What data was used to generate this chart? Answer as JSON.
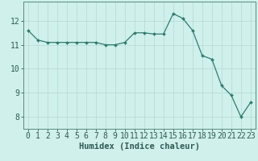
{
  "x": [
    0,
    1,
    2,
    3,
    4,
    5,
    6,
    7,
    8,
    9,
    10,
    11,
    12,
    13,
    14,
    15,
    16,
    17,
    18,
    19,
    20,
    21,
    22,
    23
  ],
  "y": [
    11.6,
    11.2,
    11.1,
    11.1,
    11.1,
    11.1,
    11.1,
    11.1,
    11.0,
    11.0,
    11.1,
    11.5,
    11.5,
    11.45,
    11.45,
    12.3,
    12.1,
    11.6,
    10.55,
    10.4,
    9.3,
    8.9,
    8.0,
    8.6
  ],
  "xlabel": "Humidex (Indice chaleur)",
  "xlim": [
    -0.5,
    23.5
  ],
  "ylim": [
    7.5,
    12.8
  ],
  "yticks": [
    8,
    9,
    10,
    11,
    12
  ],
  "xticks": [
    0,
    1,
    2,
    3,
    4,
    5,
    6,
    7,
    8,
    9,
    10,
    11,
    12,
    13,
    14,
    15,
    16,
    17,
    18,
    19,
    20,
    21,
    22,
    23
  ],
  "line_color": "#2e7d6e",
  "marker": "D",
  "marker_size": 2.0,
  "bg_color": "#cff0eb",
  "grid_color": "#b8ddd8",
  "spine_color": "#5a8a80",
  "font_color": "#2e5a54",
  "xlabel_fontsize": 7.5,
  "tick_fontsize": 7
}
